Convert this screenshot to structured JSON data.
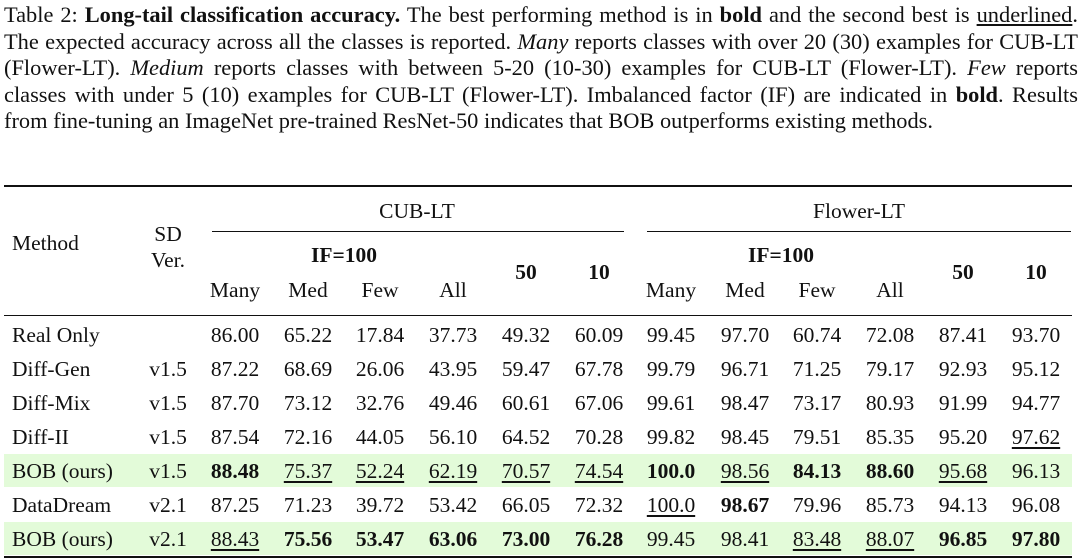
{
  "caption": {
    "label": "Table 2: ",
    "title": "Long-tail classification accuracy.",
    "s1": " The best performing method is in ",
    "bold_word": "bold",
    "s2": " and the second best is ",
    "underlined_word": "underlined",
    "s3": ". The expected accuracy across all the classes is reported. ",
    "many": "Many",
    "s4": " reports classes with over 20 (30) examples for CUB-LT (Flower-LT). ",
    "medium": "Medium",
    "s5": " reports classes with between 5-20 (10-30) examples for CUB-LT (Flower-LT). ",
    "few": "Few",
    "s6": " reports classes with under 5 (10) examples for CUB-LT (Flower-LT). Imbalanced factor (IF) are indicated in ",
    "bold_word2": "bold",
    "s7": ". Results from fine-tuning an ImageNet pre-trained ResNet-50 indicates that BOB outperforms existing methods."
  },
  "header": {
    "method": "Method",
    "sd1": "SD",
    "sd2": "Ver.",
    "cub": "CUB-LT",
    "flower": "Flower-LT",
    "if100": "IF=100",
    "if50": "50",
    "if10": "10",
    "many": "Many",
    "med": "Med",
    "few": "Few",
    "all": "All"
  },
  "rows": [
    {
      "method": "Real Only",
      "sd": "",
      "v": [
        "86.00",
        "65.22",
        "17.84",
        "37.73",
        "49.32",
        "60.09",
        "99.45",
        "97.70",
        "60.74",
        "72.08",
        "87.41",
        "93.70"
      ],
      "bold": [],
      "under": [],
      "hl": false
    },
    {
      "method": "Diff-Gen",
      "sd": "v1.5",
      "v": [
        "87.22",
        "68.69",
        "26.06",
        "43.95",
        "59.47",
        "67.78",
        "99.79",
        "96.71",
        "71.25",
        "79.17",
        "92.93",
        "95.12"
      ],
      "bold": [],
      "under": [],
      "hl": false
    },
    {
      "method": "Diff-Mix",
      "sd": "v1.5",
      "v": [
        "87.70",
        "73.12",
        "32.76",
        "49.46",
        "60.61",
        "67.06",
        "99.61",
        "98.47",
        "73.17",
        "80.93",
        "91.99",
        "94.77"
      ],
      "bold": [],
      "under": [],
      "hl": false
    },
    {
      "method": "Diff-II",
      "sd": "v1.5",
      "v": [
        "87.54",
        "72.16",
        "44.05",
        "56.10",
        "64.52",
        "70.28",
        "99.82",
        "98.45",
        "79.51",
        "85.35",
        "95.20",
        "97.62"
      ],
      "bold": [],
      "under": [
        11
      ],
      "hl": false
    },
    {
      "method": "BOB (ours)",
      "sd": "v1.5",
      "v": [
        "88.48",
        "75.37",
        "52.24",
        "62.19",
        "70.57",
        "74.54",
        "100.0",
        "98.56",
        "84.13",
        "88.60",
        "95.68",
        "96.13"
      ],
      "bold": [
        0,
        6,
        8,
        9
      ],
      "under": [
        1,
        2,
        3,
        4,
        5,
        7,
        10
      ],
      "hl": true
    },
    {
      "method": "DataDream",
      "sd": "v2.1",
      "v": [
        "87.25",
        "71.23",
        "39.72",
        "53.42",
        "66.05",
        "72.32",
        "100.0",
        "98.67",
        "79.96",
        "85.73",
        "94.13",
        "96.08"
      ],
      "bold": [
        7
      ],
      "under": [
        6
      ],
      "hl": false
    },
    {
      "method": "BOB (ours)",
      "sd": "v2.1",
      "v": [
        "88.43",
        "75.56",
        "53.47",
        "63.06",
        "73.00",
        "76.28",
        "99.45",
        "98.41",
        "83.48",
        "88.07",
        "96.85",
        "97.80"
      ],
      "bold": [
        1,
        2,
        3,
        4,
        5,
        10,
        11
      ],
      "under": [
        0,
        8,
        9
      ],
      "hl": true
    }
  ]
}
